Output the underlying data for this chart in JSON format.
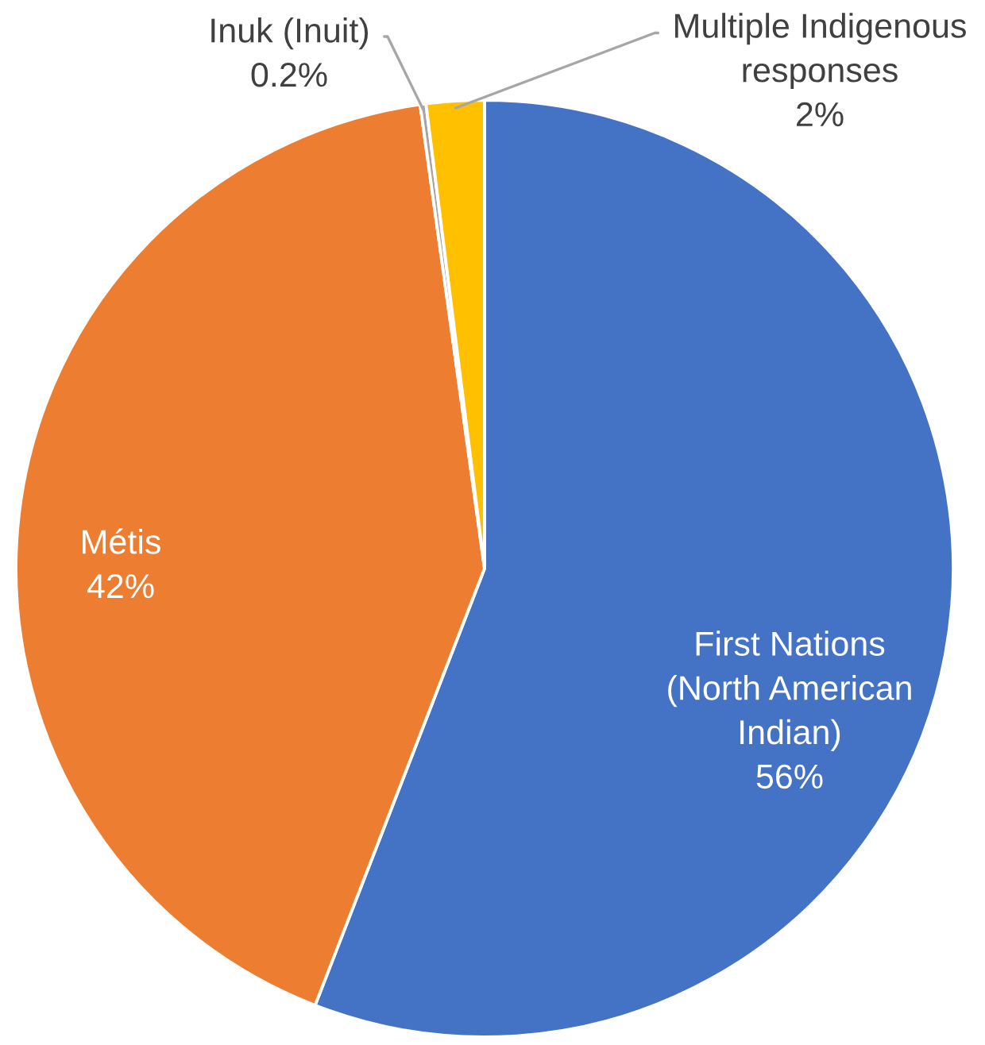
{
  "chart_data": {
    "type": "pie",
    "categories": [
      "First Nations (North American Indian)",
      "Métis",
      "Inuk (Inuit)",
      "Multiple Indigenous responses"
    ],
    "values": [
      56,
      42,
      0.2,
      2
    ],
    "colors": [
      "#4472c4",
      "#ed7d31",
      "#a5a5a5",
      "#ffc000"
    ],
    "value_labels": [
      "56%",
      "42%",
      "0.2%",
      "2%"
    ]
  }
}
